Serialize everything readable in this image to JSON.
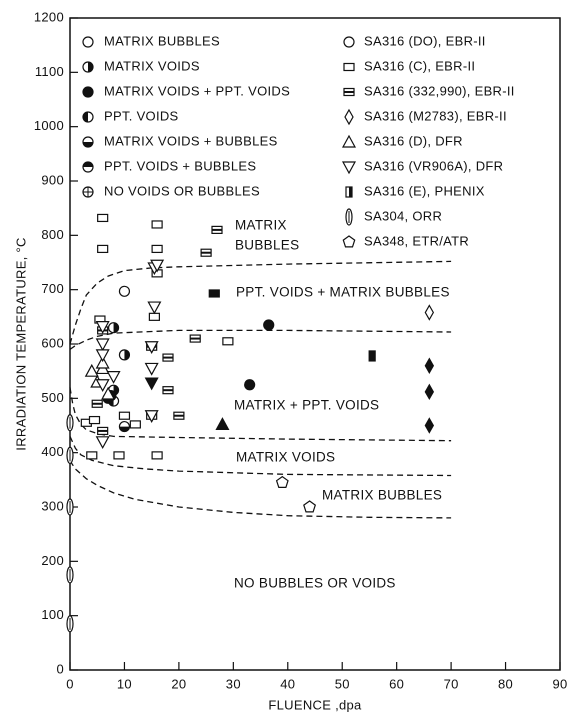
{
  "chart_data": {
    "type": "scatter",
    "xlabel": "FLUENCE ,dpa",
    "ylabel": "IRRADIATION TEMPERATURE, °C",
    "xlim": [
      0,
      90
    ],
    "xticks": [
      0,
      10,
      20,
      30,
      40,
      50,
      60,
      70,
      80,
      90
    ],
    "ylim": [
      0,
      1200
    ],
    "yticks": [
      0,
      100,
      200,
      300,
      400,
      500,
      600,
      700,
      800,
      900,
      1000,
      1100,
      1200
    ],
    "fill_legend": [
      {
        "label": "MATRIX BUBBLES",
        "fill": "open"
      },
      {
        "label": "MATRIX VOIDS",
        "fill": "right"
      },
      {
        "label": "MATRIX VOIDS + PPT. VOIDS",
        "fill": "full"
      },
      {
        "label": "PPT. VOIDS",
        "fill": "left"
      },
      {
        "label": "MATRIX VOIDS + BUBBLES",
        "fill": "bottom"
      },
      {
        "label": "PPT. VOIDS + BUBBLES",
        "fill": "top"
      },
      {
        "label": "NO VOIDS OR BUBBLES",
        "fill": "cross"
      }
    ],
    "series": [
      {
        "name": "SA316 (DO), EBR-II",
        "shape": "circle",
        "x": [
          10,
          8,
          10,
          8,
          8,
          10,
          7,
          7.5,
          36.5,
          33
        ],
        "y": [
          697,
          630,
          580,
          515,
          495,
          448,
          500,
          505,
          635,
          525
        ],
        "fill": [
          "open",
          "right",
          "right",
          "right",
          "left",
          "bottom",
          "full",
          "full",
          "full",
          "full"
        ]
      },
      {
        "name": "SA316 (C), EBR-II",
        "shape": "square",
        "x": [
          6,
          6,
          16,
          16,
          5.5,
          16,
          15.5,
          29,
          10,
          15,
          12,
          9,
          16,
          4,
          3,
          4.5
        ],
        "y": [
          832,
          775,
          820,
          775,
          645,
          730,
          650,
          605,
          468,
          468,
          452,
          395,
          395,
          395,
          455,
          460
        ],
        "fill": [
          "open",
          "open",
          "open",
          "open",
          "open",
          "open",
          "open",
          "open",
          "open",
          "open",
          "open",
          "open",
          "open",
          "open",
          "open",
          "open"
        ]
      },
      {
        "name": "SA316 (332,990), EBR-II",
        "shape": "square-bar",
        "x": [
          27,
          25,
          23,
          18,
          18,
          20,
          6,
          15,
          5,
          6,
          26.5
        ],
        "y": [
          810,
          768,
          610,
          575,
          515,
          468,
          625,
          595,
          490,
          440,
          693
        ],
        "fill": [
          "open",
          "open",
          "open",
          "open",
          "open",
          "open",
          "open",
          "open",
          "open",
          "open",
          "full"
        ]
      },
      {
        "name": "SA316 (M2783), EBR-II",
        "shape": "diamond",
        "x": [
          66,
          66,
          66,
          66
        ],
        "y": [
          658,
          560,
          512,
          450
        ],
        "fill": [
          "open",
          "full",
          "full",
          "full"
        ]
      },
      {
        "name": "SA316 (D), DFR",
        "shape": "triangle",
        "x": [
          4,
          6,
          5,
          7,
          28,
          6
        ],
        "y": [
          550,
          555,
          530,
          508,
          452,
          565
        ],
        "fill": [
          "open",
          "open",
          "open",
          "open",
          "full",
          "open"
        ]
      },
      {
        "name": "SA316 (VR906A), DFR",
        "shape": "triangle-down",
        "x": [
          15.5,
          16,
          15.5,
          6,
          6,
          6,
          15,
          15,
          15,
          6,
          6,
          15,
          8
        ],
        "y": [
          740,
          745,
          668,
          632,
          600,
          580,
          595,
          555,
          528,
          525,
          420,
          468,
          540
        ],
        "fill": [
          "open",
          "open",
          "open",
          "open",
          "open",
          "open",
          "open",
          "open",
          "full",
          "open",
          "open",
          "open",
          "open"
        ]
      },
      {
        "name": "SA316 (E), PHENIX",
        "shape": "rect-v",
        "x": [
          55.5
        ],
        "y": [
          578
        ],
        "fill": [
          "full"
        ]
      },
      {
        "name": "SA304, ORR",
        "shape": "ellipse-v",
        "x": [
          0,
          0,
          0,
          0,
          0
        ],
        "y": [
          455,
          395,
          300,
          175,
          85
        ],
        "fill": [
          "open",
          "open",
          "open",
          "open",
          "open"
        ]
      },
      {
        "name": "SA348, ETR/ATR",
        "shape": "pentagon",
        "x": [
          39,
          44
        ],
        "y": [
          345,
          300
        ],
        "fill": [
          "open",
          "open"
        ]
      }
    ],
    "boundaries": [
      {
        "x": [
          0,
          1,
          2,
          3,
          5,
          7,
          10,
          15,
          20,
          40,
          70
        ],
        "y": [
          600,
          635,
          665,
          690,
          712,
          725,
          735,
          740,
          742,
          747,
          752
        ]
      },
      {
        "x": [
          0,
          1,
          3,
          5,
          8,
          15,
          20,
          40,
          70
        ],
        "y": [
          590,
          597,
          607,
          614,
          620,
          623,
          625,
          625,
          622
        ]
      },
      {
        "x": [
          0,
          0.5,
          1,
          2,
          3,
          5,
          8,
          20,
          40,
          70
        ],
        "y": [
          520,
          490,
          470,
          452,
          442,
          435,
          430,
          428,
          425,
          422
        ]
      },
      {
        "x": [
          0,
          1,
          2,
          4,
          8,
          14,
          20,
          40,
          70
        ],
        "y": [
          430,
          408,
          396,
          386,
          376,
          370,
          366,
          360,
          358
        ]
      },
      {
        "x": [
          0,
          1,
          3,
          5,
          8,
          12,
          20,
          30,
          40,
          55,
          70
        ],
        "y": [
          385,
          370,
          352,
          340,
          326,
          314,
          300,
          290,
          284,
          281,
          280
        ]
      }
    ],
    "annotations": [
      "MATRIX",
      "BUBBLES",
      "PPT. VOIDS + MATRIX BUBBLES",
      "MATRIX + PPT. VOIDS",
      "MATRIX VOIDS",
      "MATRIX BUBBLES",
      "NO BUBBLES OR VOIDS"
    ]
  }
}
